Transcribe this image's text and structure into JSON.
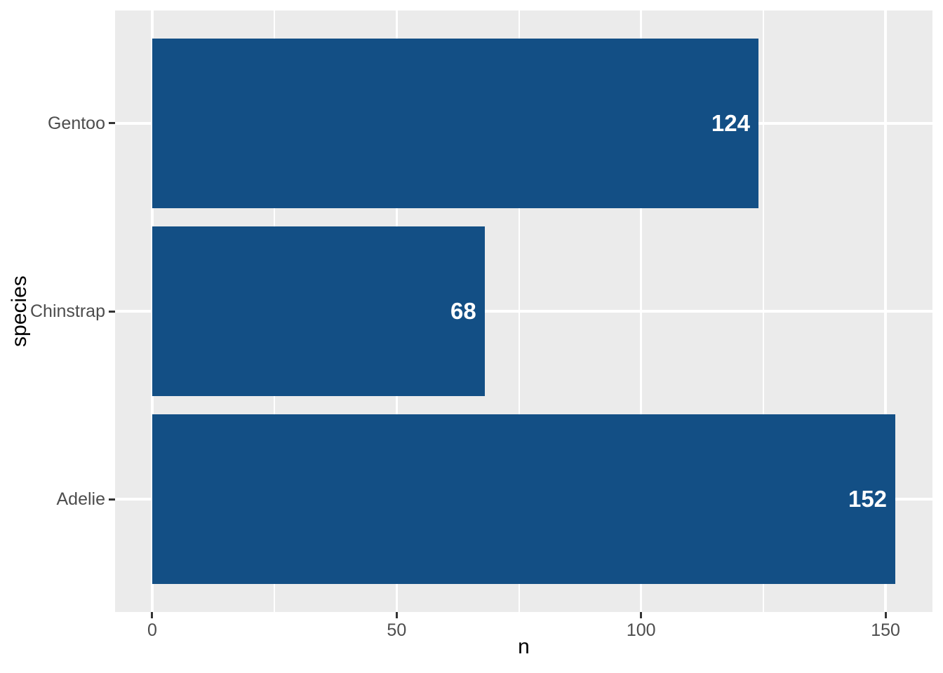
{
  "chart_data": {
    "type": "bar",
    "orientation": "horizontal",
    "title": "",
    "xlabel": "n",
    "ylabel": "species",
    "categories": [
      "Gentoo",
      "Chinstrap",
      "Adelie"
    ],
    "values": [
      124,
      68,
      152
    ],
    "value_labels": [
      "124",
      "68",
      "152"
    ],
    "x_ticks": [
      0,
      50,
      100,
      150
    ],
    "x_minor_ticks": [
      25,
      75,
      125
    ],
    "xlim": [
      -7.6,
      159.6
    ],
    "bar_width_fraction": 0.9,
    "legend": "none",
    "grid": "major and minor vertical, major horizontal",
    "colors": {
      "bar_fill": "#134F85",
      "panel_background": "#EBEBEB",
      "gridline": "#FFFFFF",
      "tick_mark": "#333333",
      "tick_label": "#4D4D4D",
      "axis_title": "#000000",
      "bar_label_text": "#FFFFFF",
      "figure_background": "#FFFFFF"
    }
  }
}
